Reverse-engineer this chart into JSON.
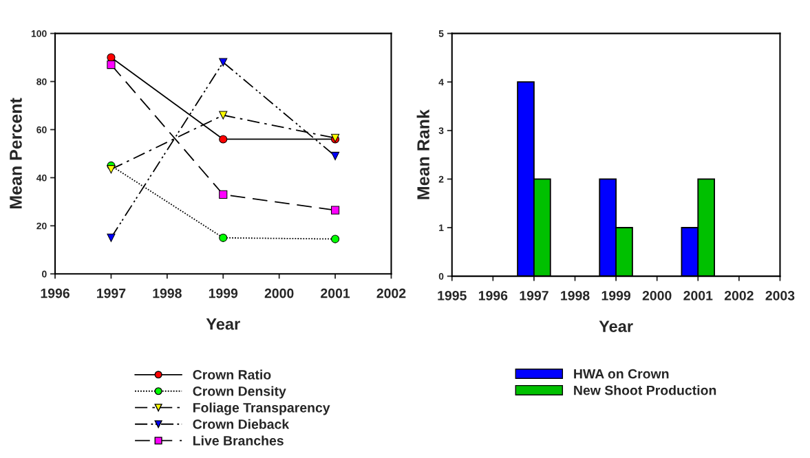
{
  "chart_data": [
    {
      "type": "line",
      "xlabel": "Year",
      "ylabel": "Mean Percent",
      "x": [
        1997,
        1999,
        2001
      ],
      "xlim": [
        1996,
        2002
      ],
      "xticks": [
        1996,
        1997,
        1998,
        1999,
        2000,
        2001,
        2002
      ],
      "ylim": [
        0,
        100
      ],
      "yticks": [
        0,
        20,
        40,
        60,
        80,
        100
      ],
      "grid": false,
      "legend": "bottom",
      "series": [
        {
          "name": "Crown Ratio",
          "color": "#ff0000",
          "marker": "circle",
          "line_style": "solid",
          "values": [
            90,
            56,
            56
          ]
        },
        {
          "name": "Crown Density",
          "color": "#00ff00",
          "marker": "circle",
          "line_style": "dotted",
          "values": [
            45,
            15,
            14.5
          ]
        },
        {
          "name": "Foliage Transparency",
          "color": "#ffff00",
          "marker": "triangle",
          "line_style": "dashdot",
          "values": [
            43.5,
            66,
            56.5
          ]
        },
        {
          "name": "Crown Dieback",
          "color": "#0000ff",
          "marker": "triangle",
          "line_style": "dashdotdot",
          "values": [
            15,
            88,
            49
          ]
        },
        {
          "name": "Live Branches",
          "color": "#ff00ff",
          "marker": "square",
          "line_style": "dashed",
          "values": [
            87,
            33,
            26.5
          ]
        }
      ]
    },
    {
      "type": "bar",
      "xlabel": "Year",
      "ylabel": "Mean Rank",
      "x": [
        1997,
        1999,
        2001
      ],
      "xlim": [
        1995,
        2003
      ],
      "xticks": [
        1995,
        1996,
        1997,
        1998,
        1999,
        2000,
        2001,
        2002,
        2003
      ],
      "ylim": [
        0,
        5
      ],
      "yticks": [
        0,
        1,
        2,
        3,
        4,
        5
      ],
      "grid": false,
      "legend": "bottom",
      "series": [
        {
          "name": "HWA on Crown",
          "color": "#0000ff",
          "values": [
            4,
            2,
            1
          ]
        },
        {
          "name": "New Shoot Production",
          "color": "#00c000",
          "values": [
            2,
            1,
            2
          ]
        }
      ]
    }
  ]
}
